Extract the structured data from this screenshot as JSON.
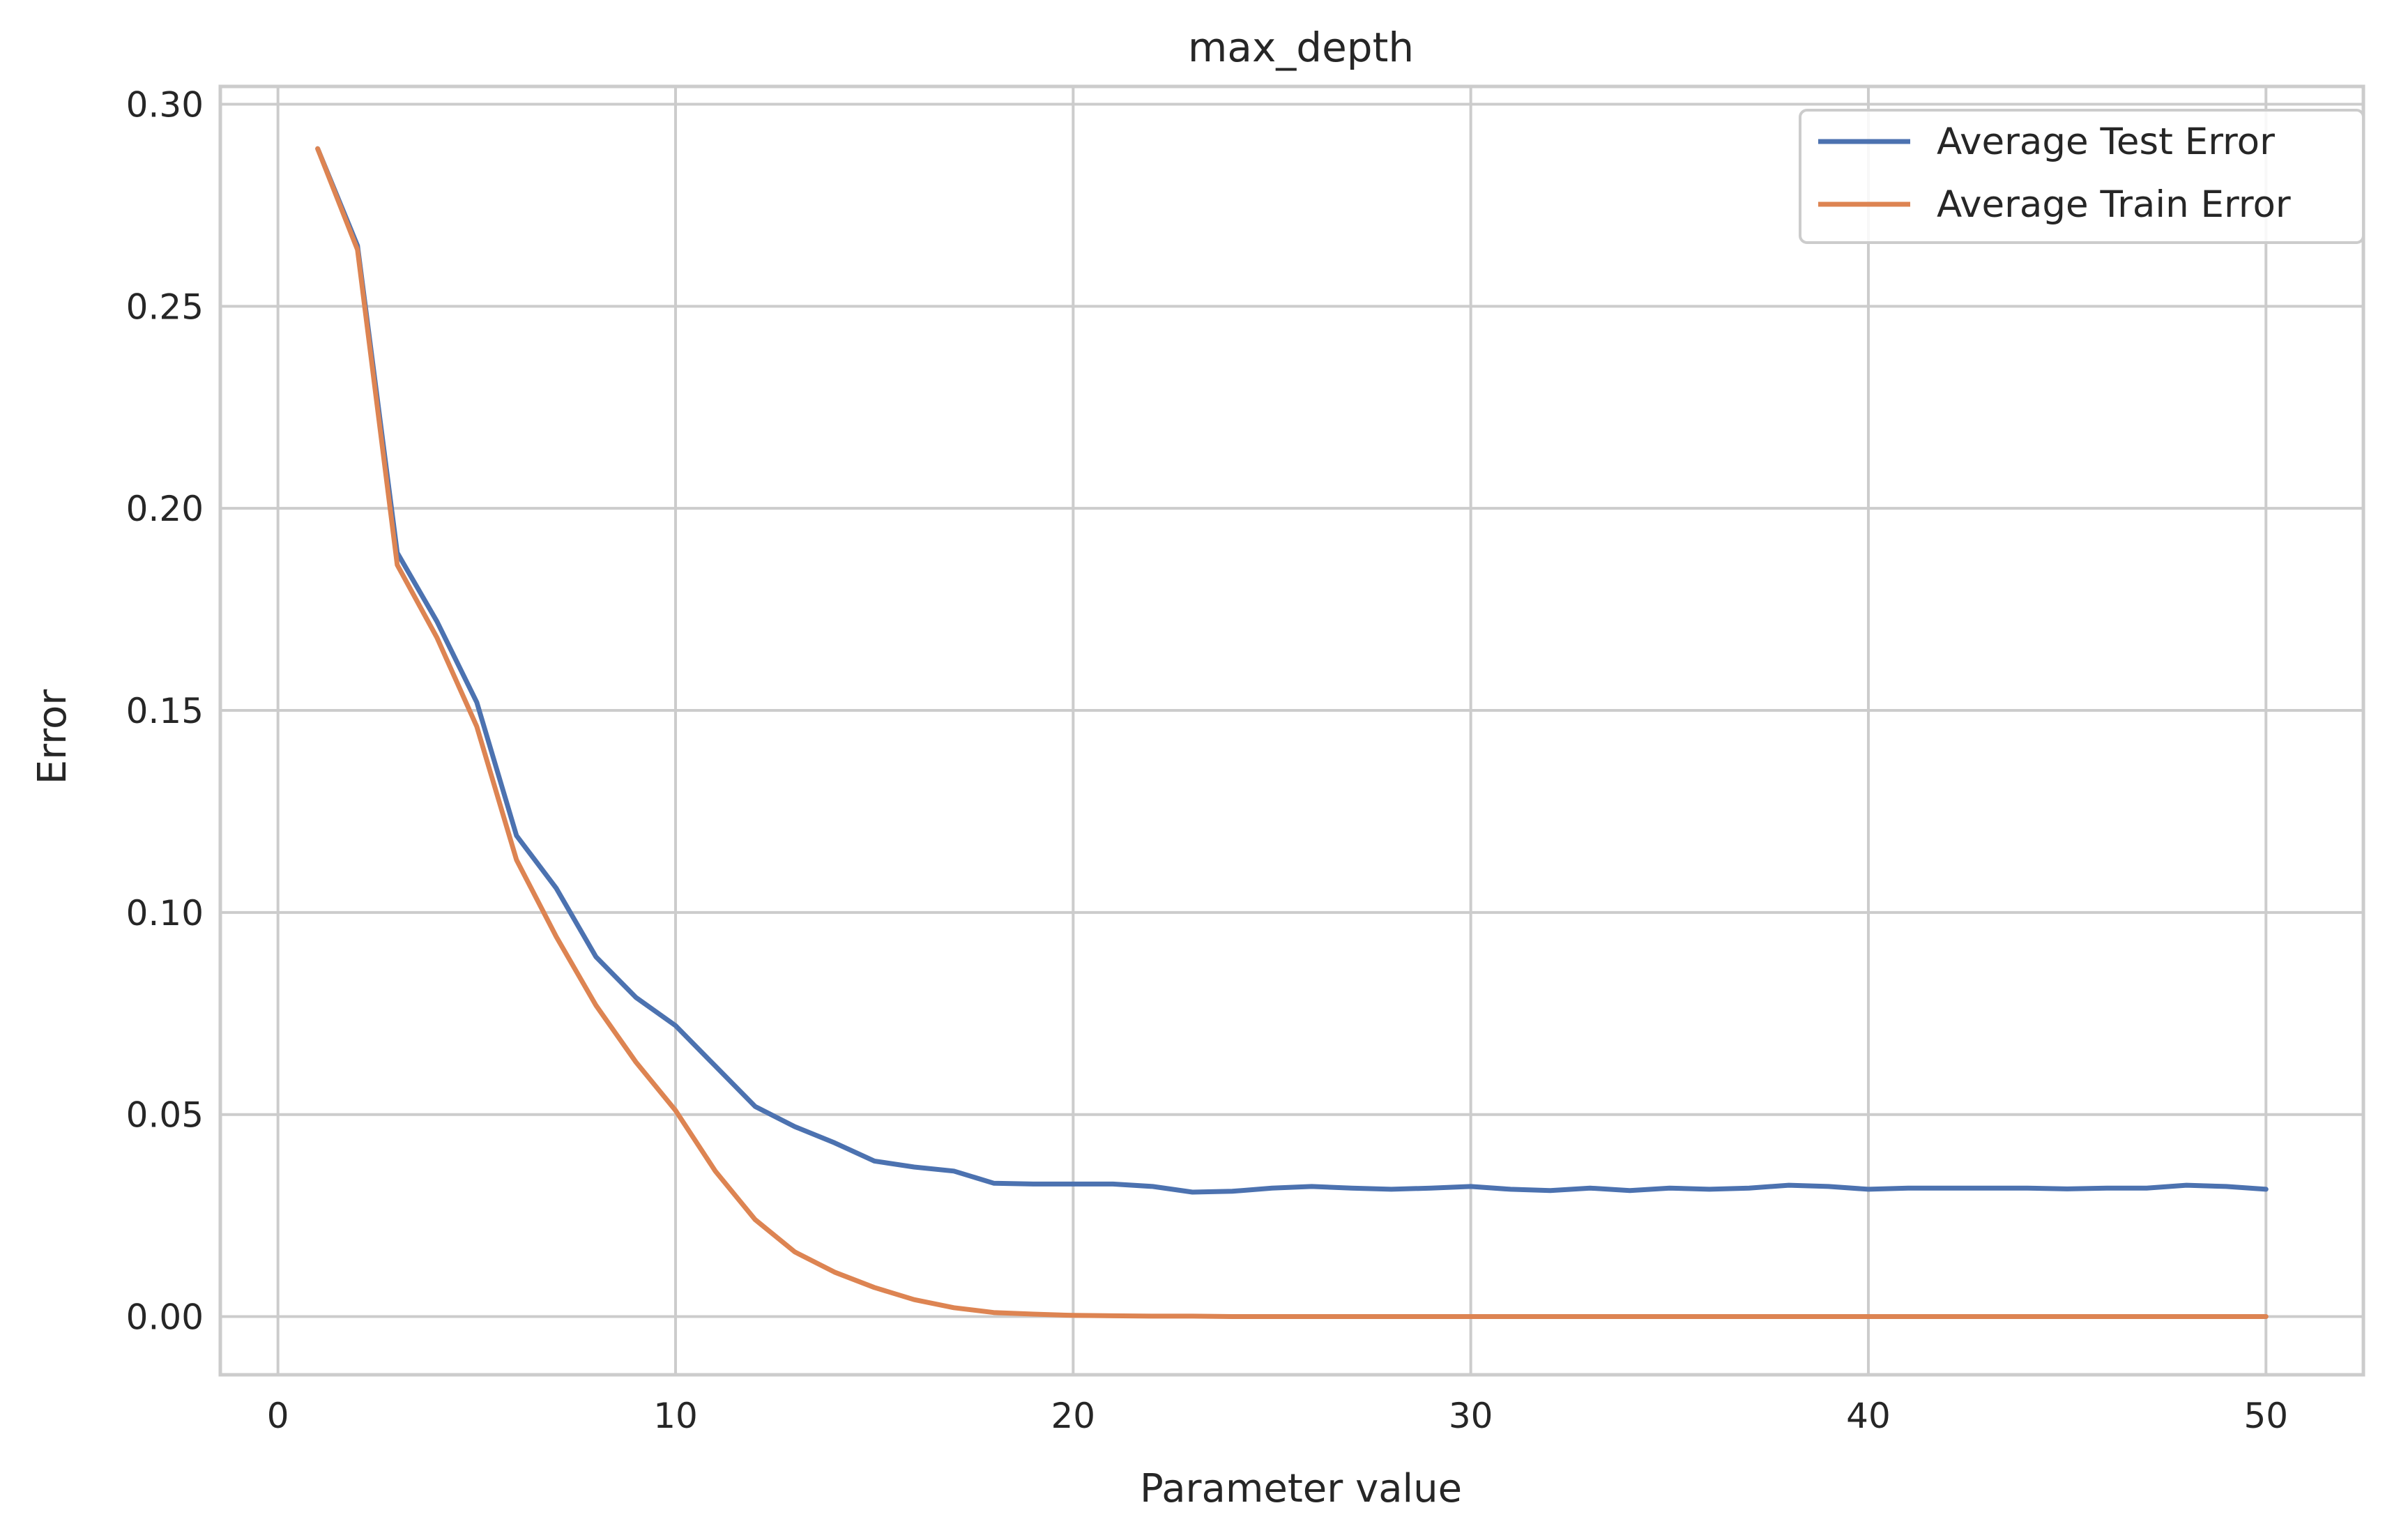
{
  "chart_data": {
    "type": "line",
    "title": "max_depth",
    "xlabel": "Parameter value",
    "ylabel": "Error",
    "xlim": [
      -1.45,
      52.45
    ],
    "ylim": [
      -0.0144,
      0.3044
    ],
    "xticks": [
      0,
      10,
      20,
      30,
      40,
      50
    ],
    "xtick_labels": [
      "0",
      "10",
      "20",
      "30",
      "40",
      "50"
    ],
    "yticks": [
      0.0,
      0.05,
      0.1,
      0.15,
      0.2,
      0.25,
      0.3
    ],
    "ytick_labels": [
      "0.00",
      "0.05",
      "0.10",
      "0.15",
      "0.20",
      "0.25",
      "0.30"
    ],
    "grid": true,
    "legend_position": "top-right",
    "x": [
      1,
      2,
      3,
      4,
      5,
      6,
      7,
      8,
      9,
      10,
      11,
      12,
      13,
      14,
      15,
      16,
      17,
      18,
      19,
      20,
      21,
      22,
      23,
      24,
      25,
      26,
      27,
      28,
      29,
      30,
      31,
      32,
      33,
      34,
      35,
      36,
      37,
      38,
      39,
      40,
      41,
      42,
      43,
      44,
      45,
      46,
      47,
      48,
      49,
      50
    ],
    "series": [
      {
        "name": "Average Test Error",
        "color": "#4c72b0",
        "values": [
          0.289,
          0.265,
          0.189,
          0.172,
          0.152,
          0.119,
          0.106,
          0.089,
          0.079,
          0.072,
          0.062,
          0.052,
          0.047,
          0.043,
          0.0385,
          0.037,
          0.036,
          0.033,
          0.0328,
          0.0328,
          0.0328,
          0.0322,
          0.0308,
          0.031,
          0.0318,
          0.0322,
          0.0318,
          0.0315,
          0.0318,
          0.0322,
          0.0315,
          0.0312,
          0.0318,
          0.0312,
          0.0318,
          0.0315,
          0.0318,
          0.0325,
          0.0322,
          0.0315,
          0.0318,
          0.0318,
          0.0318,
          0.0318,
          0.0316,
          0.0318,
          0.0318,
          0.0325,
          0.0322,
          0.0315
        ]
      },
      {
        "name": "Average Train Error",
        "color": "#dd8452",
        "values": [
          0.289,
          0.264,
          0.186,
          0.168,
          0.146,
          0.113,
          0.094,
          0.077,
          0.063,
          0.051,
          0.036,
          0.024,
          0.016,
          0.011,
          0.0072,
          0.0042,
          0.0022,
          0.001,
          0.0006,
          0.0003,
          0.0002,
          0.0001,
          0.0001,
          0.0,
          0.0,
          0.0,
          0.0,
          0.0,
          0.0,
          0.0,
          0.0,
          0.0,
          0.0,
          0.0,
          0.0,
          0.0,
          0.0,
          0.0,
          0.0,
          0.0,
          0.0,
          0.0,
          0.0,
          0.0,
          0.0,
          0.0,
          0.0,
          0.0,
          0.0,
          0.0
        ]
      }
    ]
  }
}
